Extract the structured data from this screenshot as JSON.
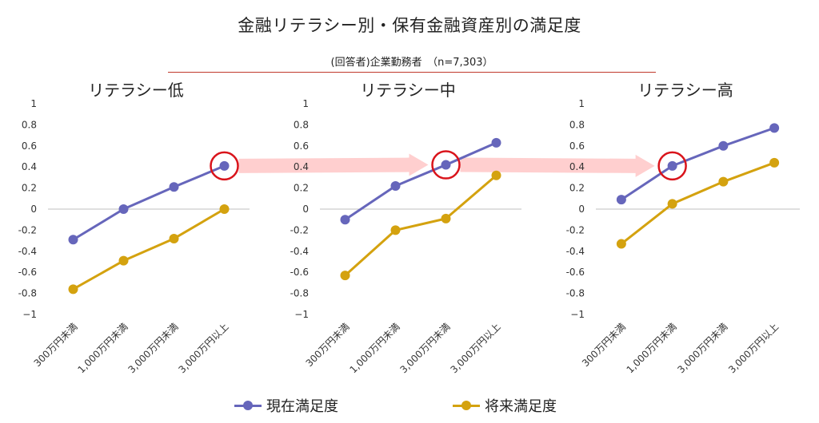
{
  "title": "金融リテラシー別・保有金融資産別の満足度",
  "subtitle": "(回答者)企業勤務者　（n=7,303）",
  "colors": {
    "current": "#6666bb",
    "future": "#d4a20f",
    "highlight": "#d9141b",
    "arrow": "#ffc7c7",
    "grid": "#d9d9d9",
    "axis": "#bfbfbf"
  },
  "legend": {
    "current_label": "現在満足度",
    "future_label": "将来満足度"
  },
  "chart_data": [
    {
      "type": "line",
      "title": "リテラシー低",
      "categories": [
        "300万円未満",
        "1,000万円未満",
        "3,000万円未満",
        "3,000万円以上"
      ],
      "y_ticks": [
        "1",
        "0.8",
        "0.6",
        "0.4",
        "0.2",
        "0",
        "-0.2",
        "-0.4",
        "-0.6",
        "-0.8",
        "−1"
      ],
      "ylim": [
        -1,
        1
      ],
      "series": [
        {
          "name": "現在満足度",
          "values": [
            -0.29,
            0.0,
            0.21,
            0.41
          ]
        },
        {
          "name": "将来満足度",
          "values": [
            -0.76,
            -0.49,
            -0.28,
            0.0
          ]
        }
      ],
      "highlight_category_index": 3
    },
    {
      "type": "line",
      "title": "リテラシー中",
      "categories": [
        "300万円未満",
        "1,000万円未満",
        "3,000万円未満",
        "3,000万円以上"
      ],
      "y_ticks": [
        "1",
        "0.8",
        "0.6",
        "0.4",
        "0.2",
        "0",
        "-0.2",
        "-0.4",
        "-0.6",
        "-0.8",
        "−1"
      ],
      "ylim": [
        -1,
        1
      ],
      "series": [
        {
          "name": "現在満足度",
          "values": [
            -0.1,
            0.22,
            0.42,
            0.63
          ]
        },
        {
          "name": "将来満足度",
          "values": [
            -0.63,
            -0.2,
            -0.09,
            0.32
          ]
        }
      ],
      "highlight_category_index": 2
    },
    {
      "type": "line",
      "title": "リテラシー高",
      "categories": [
        "300万円未満",
        "1,000万円未満",
        "3,000万円未満",
        "3,000万円以上"
      ],
      "y_ticks": [
        "1",
        "0.8",
        "0.6",
        "0.4",
        "0.2",
        "0",
        "-0.2",
        "-0.4",
        "-0.6",
        "-0.8",
        "−1"
      ],
      "ylim": [
        -1,
        1
      ],
      "series": [
        {
          "name": "現在満足度",
          "values": [
            0.09,
            0.41,
            0.6,
            0.77
          ]
        },
        {
          "name": "将来満足度",
          "values": [
            -0.33,
            0.05,
            0.26,
            0.44
          ]
        }
      ],
      "highlight_category_index": 1
    }
  ]
}
